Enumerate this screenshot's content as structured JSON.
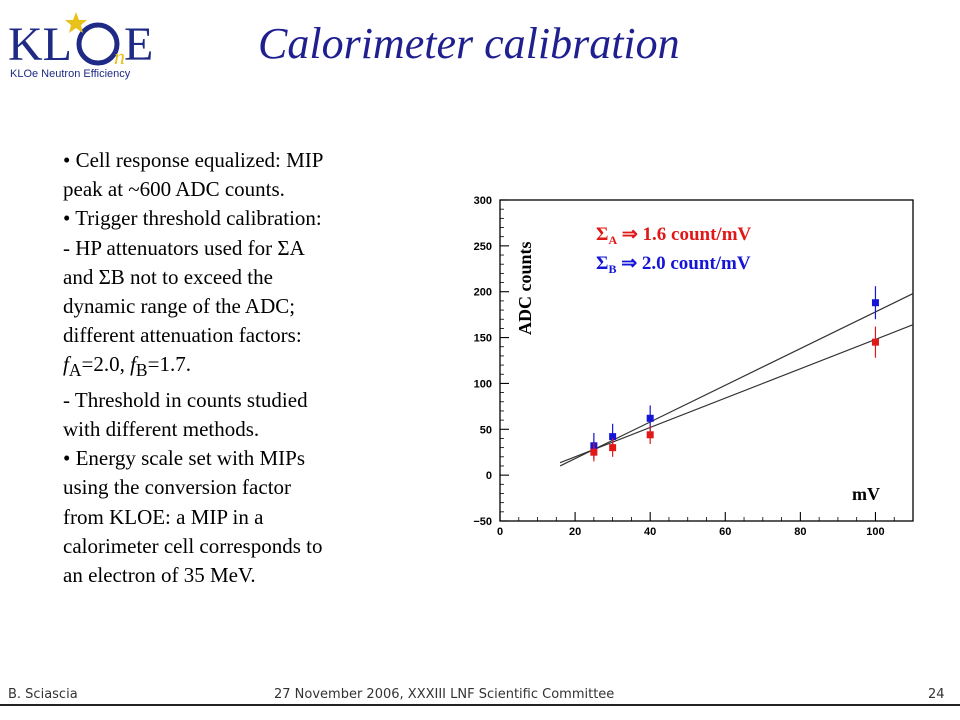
{
  "slide": {
    "title": "Calorimeter calibration",
    "logo": {
      "letters_k": "KL",
      "letters_o": "O",
      "letters_n": "n",
      "letters_e": "E",
      "tagline": "KLOe Neutron Efficiency",
      "accent": "#e8c21a",
      "brand": "#1f2a86"
    },
    "bullets": [
      "• Cell response equalized: MIP",
      "peak at ~600 ADC counts.",
      "• Trigger threshold calibration:",
      "  - HP attenuators used for ΣA",
      "and ΣB not to exceed the",
      "dynamic range of the ADC;",
      "different attenuation factors:",
      "f_A=2.0, f_B=1.7.",
      "   - Threshold in counts studied",
      "with different methods.",
      "• Energy scale set with MIPs",
      "using the conversion factor",
      "from KLOE: a MIP in a",
      "calorimeter cell corresponds to",
      "an electron of 35 MeV."
    ],
    "fA": {
      "f": "f",
      "sub": "A",
      "rest": "=2.0, "
    },
    "fB": {
      "f": "f",
      "sub": "B",
      "rest": "=1.7."
    }
  },
  "footer": {
    "author": "B. Sciascia",
    "event": "27 November 2006,  XXXIII LNF Scientific Committee",
    "page": "24"
  },
  "chart_data": {
    "type": "scatter",
    "title": "",
    "xlabel": "mV",
    "ylabel": "ADC counts",
    "xlim": [
      0,
      110
    ],
    "ylim": [
      -50,
      300
    ],
    "xticks": [
      0,
      20,
      40,
      60,
      80,
      100
    ],
    "yticks": [
      -50,
      0,
      50,
      100,
      150,
      200,
      250,
      300
    ],
    "grid": false,
    "series": [
      {
        "name": "ΣA",
        "color": "#1515d8",
        "x": [
          25,
          30,
          40,
          100
        ],
        "y": [
          32,
          42,
          62,
          188
        ],
        "err": [
          14,
          14,
          14,
          18
        ],
        "fit": {
          "slope": 1.6,
          "intercept": -12,
          "x_range": [
            16,
            110
          ]
        }
      },
      {
        "name": "ΣB",
        "color": "#e01818",
        "x": [
          25,
          30,
          40,
          100
        ],
        "y": [
          25,
          30,
          44,
          145
        ],
        "err": [
          10,
          10,
          10,
          17
        ],
        "fit": {
          "slope": 2.0,
          "intercept": -22,
          "x_range": [
            16,
            110
          ]
        }
      }
    ],
    "annotations": [
      {
        "text_sym": "Σ",
        "text_sub": "A",
        "text_arrow": "⇒",
        "text": "1.6 count/mV",
        "color": "#e01818"
      },
      {
        "text_sym": "Σ",
        "text_sub": "B",
        "text_arrow": "⇒",
        "text": "2.0 count/mV",
        "color": "#1515d8"
      }
    ]
  }
}
